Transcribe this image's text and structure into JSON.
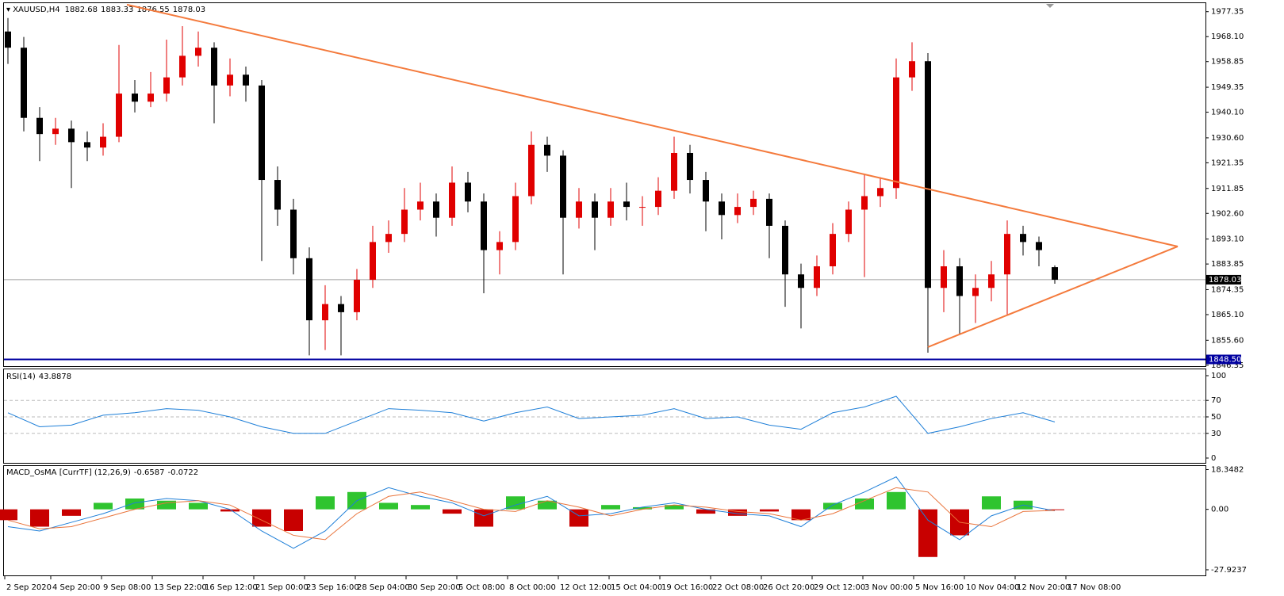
{
  "chart_data": [
    {
      "type": "candlestick",
      "symbol": "XAUUSD,H4",
      "up_color": "#e00000",
      "down_color": "#000000",
      "xlim": [
        -0.3,
        75.5
      ],
      "ylim": [
        1846.0,
        1980.5
      ],
      "yticks": [
        1977.35,
        {
          "value": 1968.1,
          "label": "1968.10"
        },
        1958.85,
        1949.35,
        {
          "value": 1940.1,
          "label": "1940.10"
        },
        {
          "value": 1930.6,
          "label": "1930.60"
        },
        1921.35,
        1911.85,
        {
          "value": 1902.6,
          "label": "1902.60"
        },
        {
          "value": 1893.1,
          "label": "1893.10"
        },
        1883.85,
        1874.35,
        {
          "value": 1865.1,
          "label": "1865.10"
        },
        {
          "value": 1855.6,
          "label": "1855.60"
        },
        1846.35
      ],
      "xticks": [
        {
          "value": -0.3,
          "label": "2 Sep 2020"
        },
        {
          "value": 2.7,
          "label": "4 Sep 20:00"
        },
        {
          "value": 5.9,
          "label": "9 Sep 08:00"
        },
        {
          "value": 9.1,
          "label": "13 Sep 22:00"
        },
        {
          "value": 12.3,
          "label": "16 Sep 12:00"
        },
        {
          "value": 15.5,
          "label": "21 Sep 00:00"
        },
        {
          "value": 18.7,
          "label": "23 Sep 16:00"
        },
        {
          "value": 21.9,
          "label": "28 Sep 04:00"
        },
        {
          "value": 25.1,
          "label": "30 Sep 20:00"
        },
        {
          "value": 28.3,
          "label": "5 Oct 08:00"
        },
        {
          "value": 31.5,
          "label": "8 Oct 00:00"
        },
        {
          "value": 34.7,
          "label": "12 Oct 12:00"
        },
        {
          "value": 37.9,
          "label": "15 Oct 04:00"
        },
        {
          "value": 41.1,
          "label": "19 Oct 16:00"
        },
        {
          "value": 44.3,
          "label": "22 Oct 08:00"
        },
        {
          "value": 47.5,
          "label": "26 Oct 20:00"
        },
        {
          "value": 50.7,
          "label": "29 Oct 12:00"
        },
        {
          "value": 53.9,
          "label": "3 Nov 00:00"
        },
        {
          "value": 57.1,
          "label": "5 Nov 16:00"
        },
        {
          "value": 60.3,
          "label": "10 Nov 04:00"
        },
        {
          "value": 63.5,
          "label": "12 Nov 20:00"
        },
        {
          "value": 66.7,
          "label": "17 Nov 08:00"
        }
      ],
      "candles": [
        [
          1970,
          1975,
          1958,
          1964
        ],
        [
          1964,
          1968,
          1933,
          1938
        ],
        [
          1938,
          1942,
          1922,
          1932
        ],
        [
          1932,
          1938,
          1928,
          1934
        ],
        [
          1934,
          1937,
          1912,
          1929
        ],
        [
          1929,
          1933,
          1922,
          1927
        ],
        [
          1927,
          1936,
          1924,
          1931
        ],
        [
          1931,
          1965,
          1929,
          1947
        ],
        [
          1947,
          1952,
          1940,
          1944
        ],
        [
          1944,
          1955,
          1942,
          1947
        ],
        [
          1947,
          1967,
          1944,
          1953
        ],
        [
          1953,
          1972,
          1950,
          1961
        ],
        [
          1961,
          1970,
          1957,
          1964
        ],
        [
          1964,
          1966,
          1936,
          1950
        ],
        [
          1950,
          1960,
          1946,
          1954
        ],
        [
          1954,
          1957,
          1944,
          1950
        ],
        [
          1950,
          1952,
          1885,
          1915
        ],
        [
          1915,
          1920,
          1898,
          1904
        ],
        [
          1904,
          1908,
          1880,
          1886
        ],
        [
          1886,
          1890,
          1850,
          1863
        ],
        [
          1863,
          1876,
          1852,
          1869
        ],
        [
          1869,
          1872,
          1850,
          1866
        ],
        [
          1866,
          1882,
          1863,
          1878
        ],
        [
          1878,
          1898,
          1875,
          1892
        ],
        [
          1892,
          1900,
          1888,
          1895
        ],
        [
          1895,
          1912,
          1892,
          1904
        ],
        [
          1904,
          1914,
          1900,
          1907
        ],
        [
          1907,
          1910,
          1894,
          1901
        ],
        [
          1901,
          1920,
          1898,
          1914
        ],
        [
          1914,
          1918,
          1903,
          1907
        ],
        [
          1907,
          1910,
          1873,
          1889
        ],
        [
          1889,
          1896,
          1880,
          1892
        ],
        [
          1892,
          1914,
          1889,
          1909
        ],
        [
          1909,
          1933,
          1906,
          1928
        ],
        [
          1928,
          1931,
          1918,
          1924
        ],
        [
          1924,
          1926,
          1880,
          1901
        ],
        [
          1901,
          1912,
          1897,
          1907
        ],
        [
          1907,
          1910,
          1889,
          1901
        ],
        [
          1901,
          1912,
          1898,
          1907
        ],
        [
          1907,
          1914,
          1900,
          1905
        ],
        [
          1905,
          1909,
          1898,
          1905
        ],
        [
          1905,
          1916,
          1902,
          1911
        ],
        [
          1911,
          1931,
          1908,
          1925
        ],
        [
          1925,
          1928,
          1910,
          1915
        ],
        [
          1915,
          1918,
          1896,
          1907
        ],
        [
          1907,
          1910,
          1893,
          1902
        ],
        [
          1902,
          1910,
          1899,
          1905
        ],
        [
          1905,
          1911,
          1902,
          1908
        ],
        [
          1908,
          1910,
          1886,
          1898
        ],
        [
          1898,
          1900,
          1868,
          1880
        ],
        [
          1880,
          1884,
          1860,
          1875
        ],
        [
          1875,
          1887,
          1872,
          1883
        ],
        [
          1883,
          1899,
          1880,
          1895
        ],
        [
          1895,
          1907,
          1892,
          1904
        ],
        [
          1904,
          1917,
          1879,
          1909
        ],
        [
          1909,
          1916,
          1905,
          1912
        ],
        [
          1912,
          1960,
          1908,
          1953
        ],
        [
          1953,
          1966,
          1948,
          1959
        ],
        [
          1959,
          1962,
          1851,
          1875
        ],
        [
          1875,
          1889,
          1866,
          1883
        ],
        [
          1883,
          1886,
          1858,
          1872
        ],
        [
          1872,
          1880,
          1862,
          1875
        ],
        [
          1875,
          1885,
          1870,
          1880
        ],
        [
          1880,
          1900,
          1865,
          1895
        ],
        [
          1895,
          1898,
          1887,
          1892
        ],
        [
          1892,
          1894,
          1883,
          1889
        ],
        [
          1882.68,
          1883.33,
          1876.55,
          1878.03
        ]
      ],
      "hlines": [
        {
          "value": 1848.5,
          "label": "1848.50",
          "color": "#0000a0"
        }
      ],
      "price_line_color": "#a0a0a0",
      "trendlines": [
        {
          "color": "#f47a3c",
          "points": [
            [
              7.5,
              1979.95
            ],
            [
              73.75,
              1890.35
            ]
          ]
        },
        {
          "color": "#f47a3c",
          "points": [
            [
              58,
              1853.07
            ],
            [
              73.75,
              1890.35
            ]
          ]
        }
      ]
    },
    {
      "type": "line",
      "title": "RSI(14)",
      "xlim": [
        -0.3,
        75.5
      ],
      "ylim": [
        -5.8,
        107.7
      ],
      "yticks": [
        100,
        70,
        50,
        30,
        0
      ],
      "series": [
        {
          "color": "#1e7fd8",
          "x": [
            0,
            2,
            4,
            6,
            8,
            10,
            12,
            14,
            16,
            18,
            20,
            22,
            24,
            26,
            28,
            30,
            32,
            34,
            36,
            38,
            40,
            42,
            44,
            46,
            48,
            50,
            52,
            54,
            56,
            58,
            60,
            62,
            64,
            66
          ],
          "values": [
            55,
            38,
            40,
            52,
            55,
            60,
            58,
            50,
            38,
            30,
            30,
            45,
            60,
            58,
            55,
            45,
            55,
            62,
            48,
            50,
            52,
            60,
            48,
            50,
            40,
            35,
            55,
            62,
            75,
            30,
            38,
            48,
            55,
            43.8878
          ]
        }
      ]
    },
    {
      "type": "osma",
      "title": "MACD_OsMA [CurrTF] (12,26,9)",
      "xlim": [
        -0.3,
        75.5
      ],
      "ylim": [
        -30.5,
        20
      ],
      "yticks": [
        18.3482,
        {
          "value": 0,
          "label": "0.00"
        },
        -27.9237
      ],
      "x": [
        0,
        2,
        4,
        6,
        8,
        10,
        12,
        14,
        16,
        18,
        20,
        22,
        24,
        26,
        28,
        30,
        32,
        34,
        36,
        38,
        40,
        42,
        44,
        46,
        48,
        50,
        52,
        54,
        56,
        58,
        60,
        62,
        64,
        66
      ],
      "histogram": {
        "up_color": "#2fc42f",
        "down_color": "#c80000",
        "values": [
          -5,
          -8,
          -3,
          3,
          5,
          4,
          3,
          -1,
          -8,
          -10,
          6,
          8,
          3,
          2,
          -2,
          -8,
          6,
          4,
          -8,
          2,
          1,
          2,
          -2,
          -3,
          -1,
          -5,
          3,
          5,
          8,
          -22,
          -12,
          6,
          4,
          -0.0722
        ]
      },
      "series": [
        {
          "color": "#1e7fd8",
          "values": [
            -8,
            -10,
            -6,
            -2,
            3,
            5,
            4,
            0,
            -10,
            -18,
            -10,
            4,
            10,
            6,
            3,
            -3,
            2,
            6,
            -3,
            -2,
            1,
            3,
            0,
            -2,
            -3,
            -8,
            2,
            8,
            15,
            -5,
            -14,
            -3,
            2,
            -0.6587
          ]
        },
        {
          "color": "#e9743b",
          "values": [
            -5,
            -9,
            -8,
            -4,
            0,
            3,
            4,
            2,
            -5,
            -12,
            -14,
            -2,
            6,
            8,
            4,
            0,
            -1,
            4,
            1,
            -3,
            0,
            2,
            1,
            -1,
            -2,
            -5,
            -2,
            4,
            10,
            8,
            -6,
            -8,
            -1,
            -0.5
          ]
        }
      ]
    }
  ]
}
